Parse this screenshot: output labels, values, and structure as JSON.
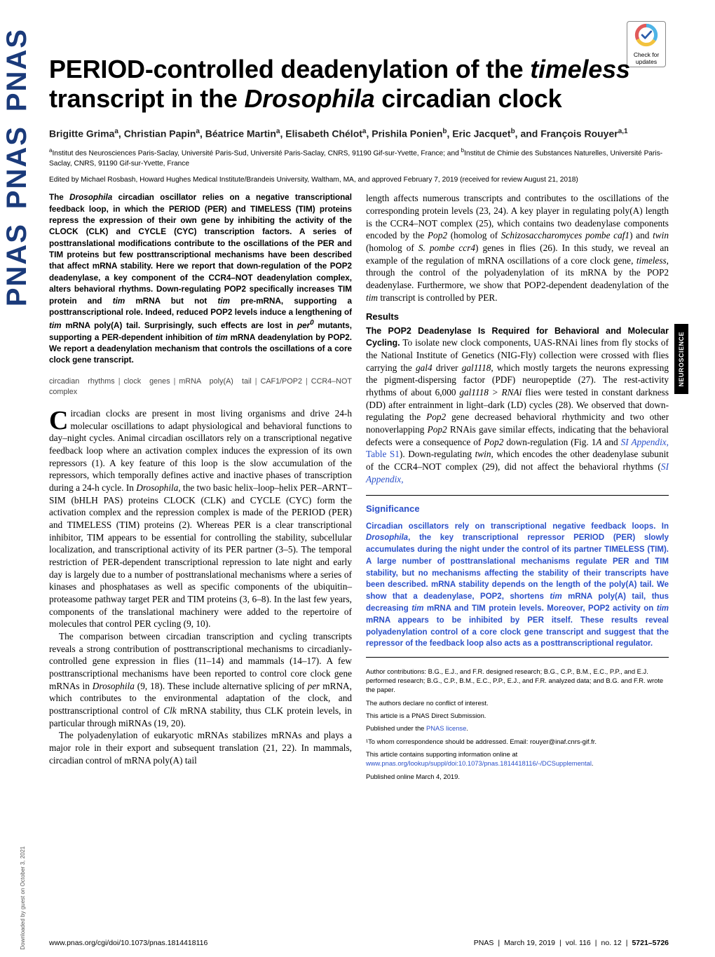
{
  "journal_side_text": "PNAS",
  "check_updates_label": "Check for updates",
  "category_tab": "NEUROSCIENCE",
  "download_note": "Downloaded by guest on October 3, 2021",
  "title_pre": "PERIOD-controlled deadenylation of the ",
  "title_it1": "timeless",
  "title_mid": " transcript in the ",
  "title_it2": "Drosophila",
  "title_post": " circadian clock",
  "authors_html": "Brigitte Grima<sup>a</sup>, Christian Papin<sup>a</sup>, Béatrice Martin<sup>a</sup>, Elisabeth Chélot<sup>a</sup>, Prishila Ponien<sup>b</sup>, Eric Jacquet<sup>b</sup>, and François Rouyer<sup>a,1</sup>",
  "affils_html": "<sup>a</sup>Institut des Neurosciences Paris-Saclay, Université Paris-Sud, Université Paris-Saclay, CNRS, 91190 Gif-sur-Yvette, France; and <sup>b</sup>Institut de Chimie des Substances Naturelles, Université Paris-Saclay, CNRS, 91190 Gif-sur-Yvette, France",
  "edited": "Edited by Michael Rosbash, Howard Hughes Medical Institute/Brandeis University, Waltham, MA, and approved February 7, 2019 (received for review August 21, 2018)",
  "abstract": "The <span class=\"it\">Drosophila</span> circadian oscillator relies on a negative transcriptional feedback loop, in which the PERIOD (PER) and TIMELESS (TIM) proteins repress the expression of their own gene by inhibiting the activity of the CLOCK (CLK) and CYCLE (CYC) transcription factors. A series of posttranslational modifications contribute to the oscillations of the PER and TIM proteins but few posttranscriptional mechanisms have been described that affect mRNA stability. Here we report that down-regulation of the POP2 deadenylase, a key component of the CCR4–NOT deadenylation complex, alters behavioral rhythms. Down-regulating POP2 specifically increases TIM protein and <span class=\"it\">tim</span> mRNA but not <span class=\"it\">tim</span> pre-mRNA, supporting a posttranscriptional role. Indeed, reduced POP2 levels induce a lengthening of <span class=\"it\">tim</span> mRNA poly(A) tail. Surprisingly, such effects are lost in <span class=\"it\">per<sup>0</sup></span> mutants, supporting a PER-dependent inhibition of <span class=\"it\">tim</span> mRNA deadenylation by POP2. We report a deadenylation mechanism that controls the oscillations of a core clock gene transcript.",
  "keywords": [
    "circadian rhythms",
    "clock genes",
    "mRNA poly(A) tail",
    "CAF1/POP2",
    "CCR4–NOT complex"
  ],
  "intro_p1": "ircadian clocks are present in most living organisms and drive 24-h molecular oscillations to adapt physiological and behavioral functions to day–night cycles. Animal circadian oscillators rely on a transcriptional negative feedback loop where an activation complex induces the expression of its own repressors (1). A key feature of this loop is the slow accumulation of the repressors, which temporally defines active and inactive phases of transcription during a 24-h cycle. In <em>Drosophila</em>, the two basic helix–loop–helix PER–ARNT–SIM (bHLH PAS) proteins CLOCK (CLK) and CYCLE (CYC) form the activation complex and the repression complex is made of the PERIOD (PER) and TIMELESS (TIM) proteins (2). Whereas PER is a clear transcriptional inhibitor, TIM appears to be essential for controlling the stability, subcellular localization, and transcriptional activity of its PER partner (3–5). The temporal restriction of PER-dependent transcriptional repression to late night and early day is largely due to a number of posttranslational mechanisms where a series of kinases and phosphatases as well as specific components of the ubiquitin–proteasome pathway target PER and TIM proteins (3, 6–8). In the last few years, components of the translational machinery were added to the repertoire of molecules that control PER cycling (9, 10).",
  "intro_p2": "The comparison between circadian transcription and cycling transcripts reveals a strong contribution of posttranscriptional mechanisms to circadianly-controlled gene expression in flies (11–14) and mammals (14–17). A few posttranscriptional mechanisms have been reported to control core clock gene mRNAs in <em>Drosophila</em> (9, 18). These include alternative splicing of <em>per</em> mRNA, which contributes to the environmental adaptation of the clock, and posttranscriptional control of <em>Clk</em> mRNA stability, thus CLK protein levels, in particular through miRNAs (19, 20).",
  "intro_p3": "The polyadenylation of eukaryotic mRNAs stabilizes mRNAs and plays a major role in their export and subsequent translation (21, 22). In mammals, circadian control of mRNA poly(A) tail",
  "right_p1": "length affects numerous transcripts and contributes to the oscillations of the corresponding protein levels (23, 24). A key player in regulating poly(A) length is the CCR4–NOT complex (25), which contains two deadenylase components encoded by the <em>Pop2</em> (homolog of <em>Schizosaccharomyces pombe caf1</em>) and <em>twin</em> (homolog of <em>S. pombe ccr4</em>) genes in flies (26). In this study, we reveal an example of the regulation of mRNA oscillations of a core clock gene, <em>timeless</em>, through the control of the polyadenylation of its mRNA by the POP2 deadenylase. Furthermore, we show that POP2-dependent deadenylation of the <em>tim</em> transcript is controlled by PER.",
  "results_heading": "Results",
  "results_runin": "The POP2 Deadenylase Is Required for Behavioral and Molecular Cycling.",
  "results_body": " To isolate new clock components, UAS-RNAi lines from fly stocks of the National Institute of Genetics (NIG-Fly) collection were crossed with flies carrying the <em>gal4</em> driver <em>gal1118</em>, which mostly targets the neurons expressing the pigment-dispersing factor (PDF) neuropeptide (27). The rest-activity rhythms of about 6,000 <em>gal1118 &gt; RNAi</em> flies were tested in constant darkness (DD) after entrainment in light–dark (LD) cycles (28). We observed that down-regulating the <em>Pop2</em> gene decreased behavioral rhythmicity and two other nonoverlapping <em>Pop2</em> RNAis gave similar effects, indicating that the behavioral defects were a consequence of <em>Pop2</em> down-regulation (Fig. 1<em>A</em> and <span class=\"link\"><em>SI Appendix</em>, Table S1</span>). Down-regulating <em>twin</em>, which encodes the other deadenylase subunit of the CCR4–NOT complex (29), did not affect the behavioral rhythms (<span class=\"link\"><em>SI Appendix</em>,</span>",
  "significance_heading": "Significance",
  "significance_body": "Circadian oscillators rely on transcriptional negative feedback loops. In <span class=\"it\">Drosophila</span>, the key transcriptional repressor PERIOD (PER) slowly accumulates during the night under the control of its partner TIMELESS (TIM). A large number of posttranslational mechanisms regulate PER and TIM stability, but no mechanisms affecting the stability of their transcripts have been described. mRNA stability depends on the length of the poly(A) tail. We show that a deadenylase, POP2, shortens <span class=\"it\">tim</span> mRNA poly(A) tail, thus decreasing <span class=\"it\">tim</span> mRNA and TIM protein levels. Moreover, POP2 activity on <span class=\"it\">tim</span> mRNA appears to be inhibited by PER itself. These results reveal polyadenylation control of a core clock gene transcript and suggest that the repressor of the feedback loop also acts as a posttranscriptional regulator.",
  "footer": {
    "contrib": "Author contributions: B.G., E.J., and F.R. designed research; B.G., C.P., B.M., E.C., P.P., and E.J. performed research; B.G., C.P., B.M., E.C., P.P., E.J., and F.R. analyzed data; and B.G. and F.R. wrote the paper.",
    "coi": "The authors declare no conflict of interest.",
    "direct": "This article is a PNAS Direct Submission.",
    "license_pre": "Published under the ",
    "license_link": "PNAS license",
    "license_post": ".",
    "corr": "¹To whom correspondence should be addressed. Email: rouyer@inaf.cnrs-gif.fr.",
    "supp_pre": "This article contains supporting information online at ",
    "supp_link": "www.pnas.org/lookup/suppl/doi:10.1073/pnas.1814418116/-/DCSupplemental",
    "supp_post": ".",
    "pub": "Published online March 4, 2019."
  },
  "bottom": {
    "doi": "www.pnas.org/cgi/doi/10.1073/pnas.1814418116",
    "journal": "PNAS",
    "date": "March 19, 2019",
    "vol": "vol. 116",
    "no": "no. 12",
    "pages": "5721–5726"
  },
  "colors": {
    "link": "#2a4fc9",
    "pnas_blue": "#1a3a7a",
    "check_ring_blue": "#4eb4e6",
    "check_ring_yellow": "#f2c23e",
    "check_ring_red": "#e05a5a",
    "check_mark_blue": "#2a5caa"
  }
}
